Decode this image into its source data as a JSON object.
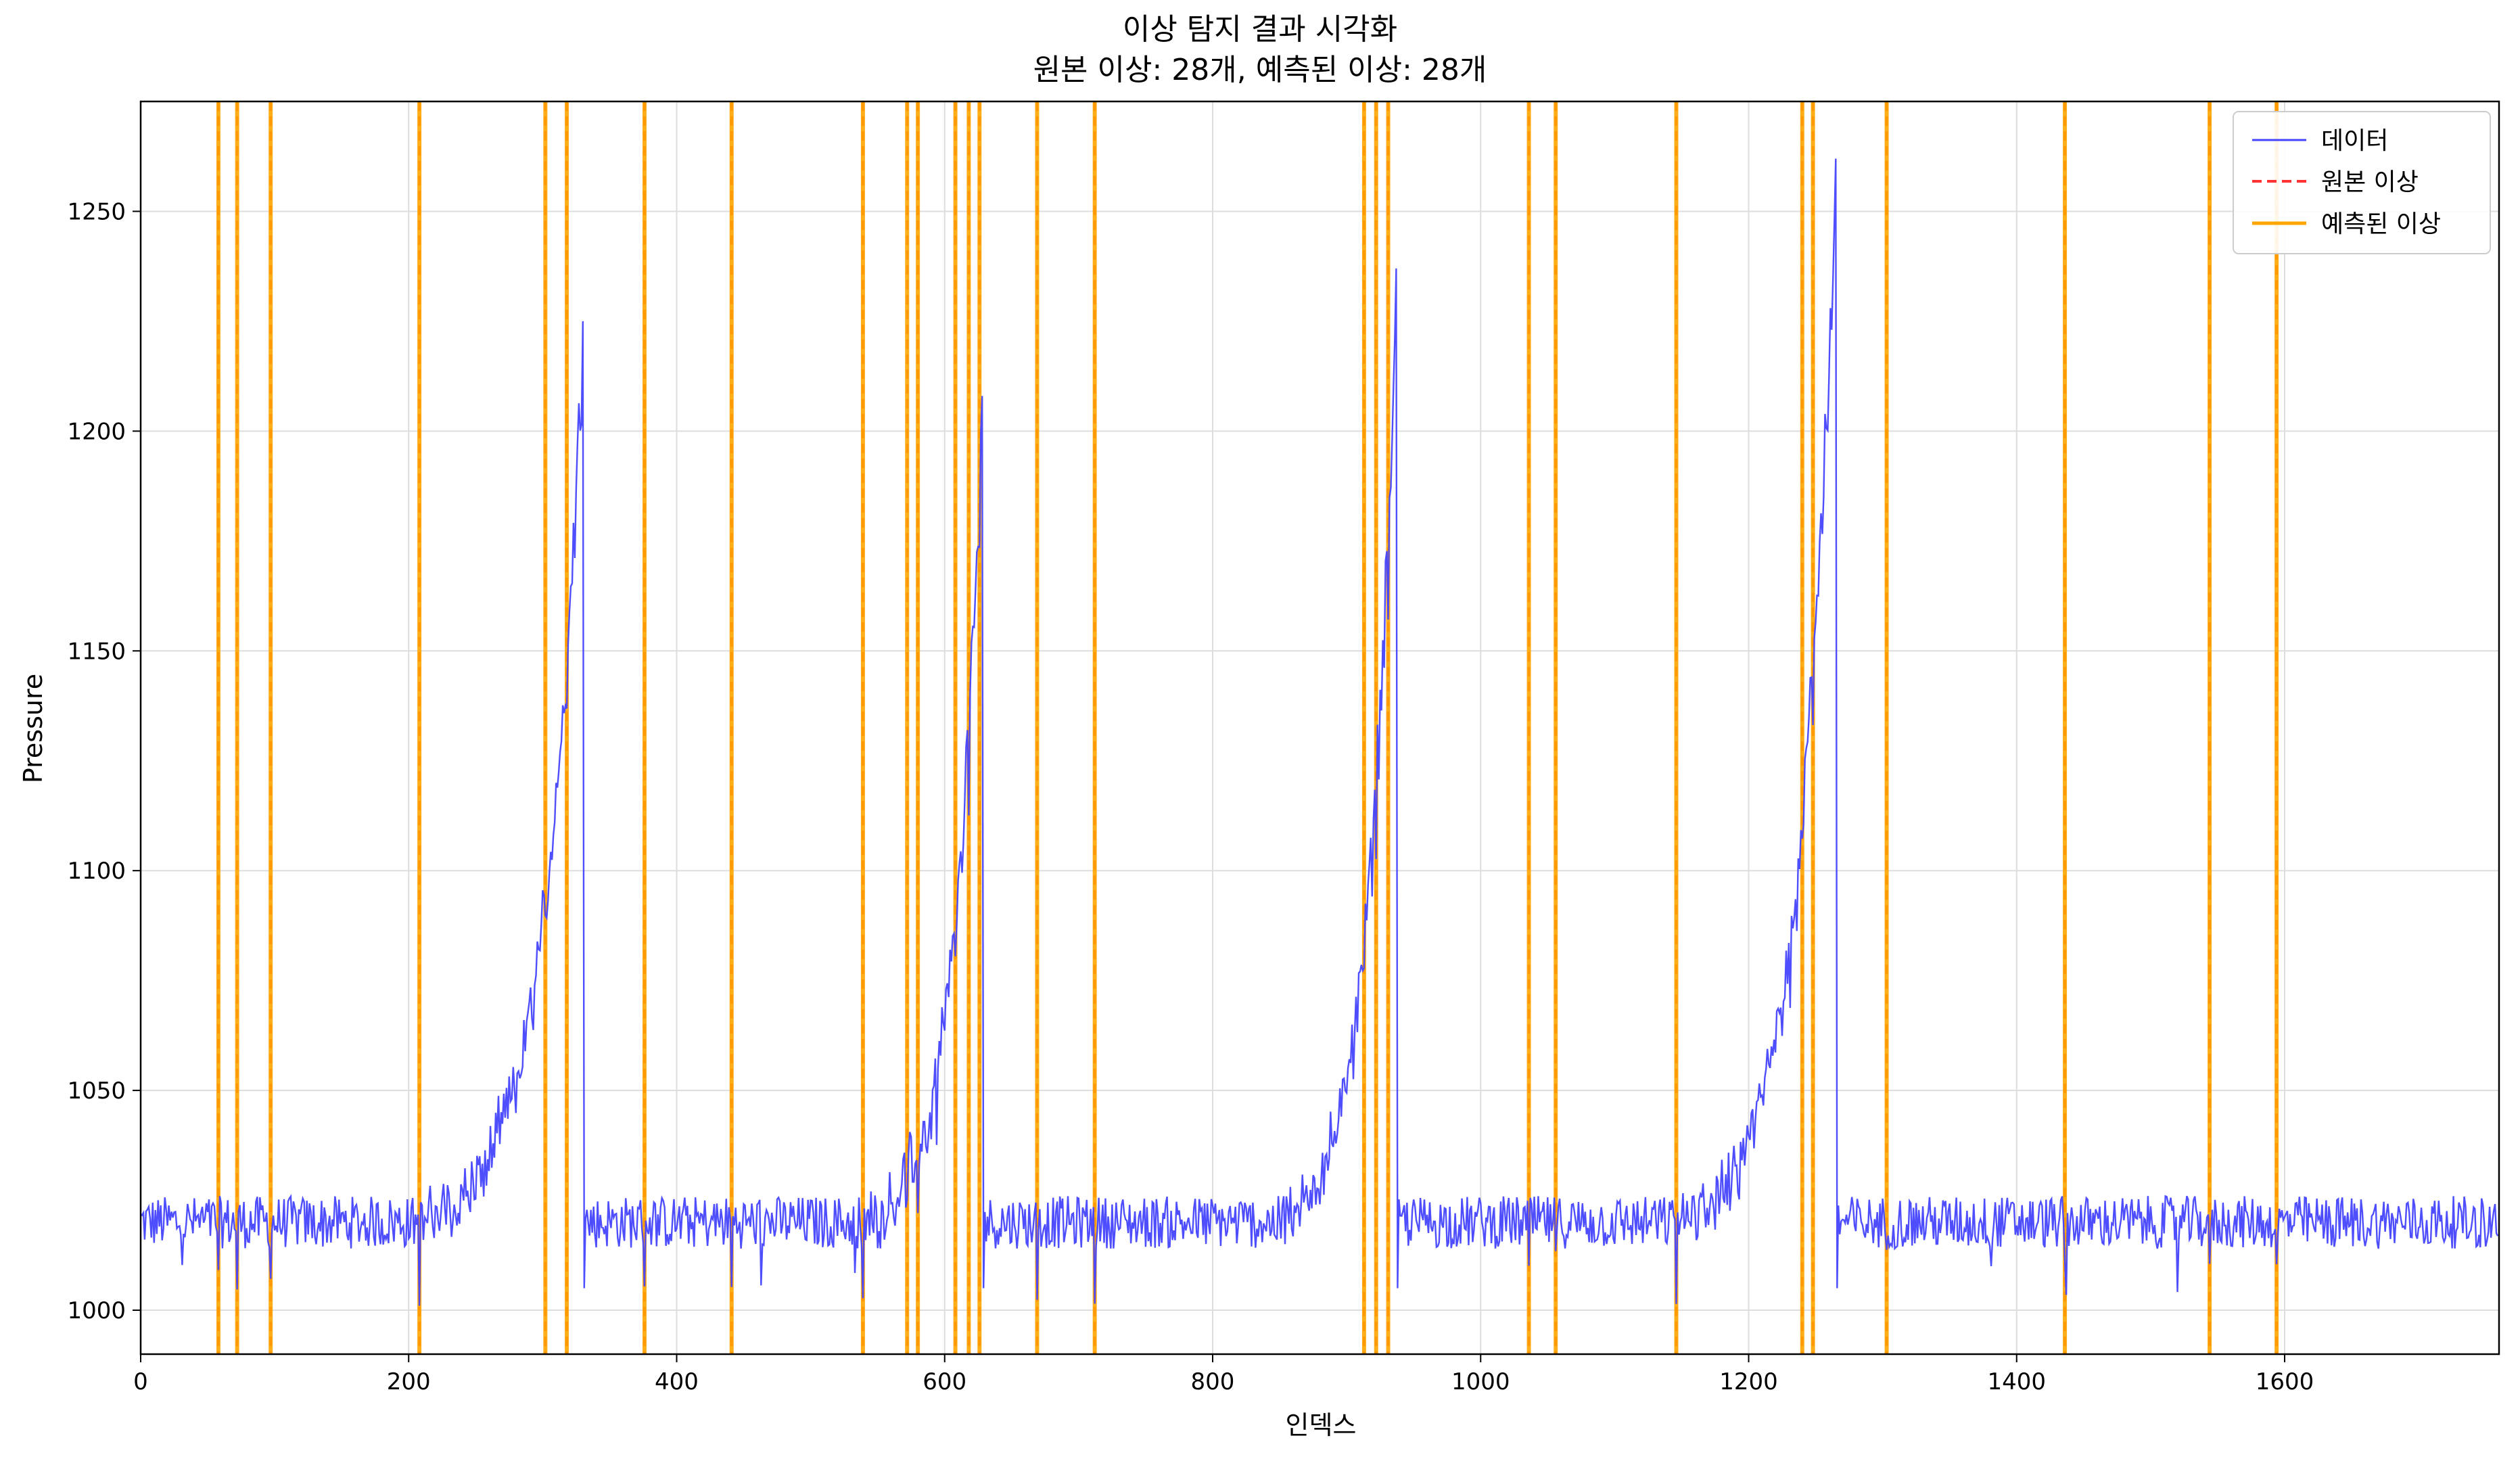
{
  "chart_data": {
    "type": "line",
    "title": "이상 탐지 결과 시각화",
    "subtitle": "원본 이상: 28개, 예측된 이상: 28개",
    "xlabel": "인덱스",
    "ylabel": "Pressure",
    "xlim": [
      0,
      1760
    ],
    "ylim": [
      990,
      1275
    ],
    "xticks": [
      0,
      200,
      400,
      600,
      800,
      1000,
      1200,
      1400,
      1600
    ],
    "yticks": [
      1000,
      1050,
      1100,
      1150,
      1200,
      1250
    ],
    "grid": true,
    "legend_position": "top-right",
    "n_points": 1760,
    "baseline": 1020,
    "noise_amplitude": 6,
    "cycles": [
      {
        "start": 210,
        "end": 330,
        "peak": 1225
      },
      {
        "start": 540,
        "end": 628,
        "peak": 1208
      },
      {
        "start": 850,
        "end": 937,
        "peak": 1237
      },
      {
        "start": 1150,
        "end": 1265,
        "peak": 1262
      }
    ],
    "series": [
      {
        "name": "데이터",
        "color": "#4444ff",
        "style": "solid"
      },
      {
        "name": "원본 이상",
        "color": "#ff3333",
        "style": "dashed"
      },
      {
        "name": "예측된 이상",
        "color": "#ffa500",
        "style": "solid"
      }
    ],
    "anomalies_original": [
      58,
      72,
      97,
      208,
      302,
      318,
      376,
      441,
      539,
      572,
      580,
      608,
      618,
      626,
      669,
      712,
      913,
      922,
      931,
      1036,
      1056,
      1146,
      1240,
      1248,
      1303,
      1436,
      1544,
      1594
    ],
    "anomalies_predicted": [
      58,
      72,
      97,
      208,
      302,
      318,
      376,
      441,
      539,
      572,
      580,
      608,
      618,
      626,
      669,
      712,
      913,
      922,
      931,
      1036,
      1056,
      1146,
      1240,
      1248,
      1303,
      1436,
      1544,
      1594
    ]
  }
}
